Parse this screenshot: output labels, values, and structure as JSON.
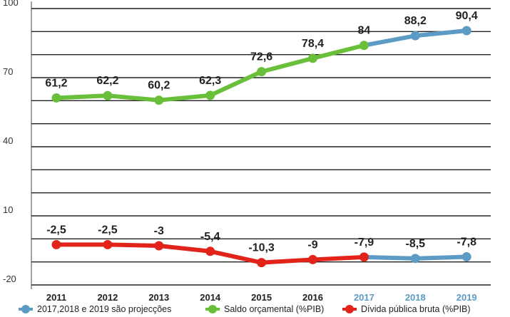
{
  "chart_data": {
    "type": "line",
    "categories": [
      "2011",
      "2012",
      "2013",
      "2014",
      "2015",
      "2016",
      "2017",
      "2018",
      "2019"
    ],
    "projected_categories": [
      "2017",
      "2018",
      "2019"
    ],
    "y_ticks": [
      "100",
      "70",
      "40",
      "10",
      "-20"
    ],
    "ylim": [
      -20,
      100
    ],
    "grid": true,
    "legend_position": "bottom",
    "series": [
      {
        "name": "Saldo orçamental (%PIB)",
        "color": "#6abf3a",
        "values": [
          61.2,
          62.2,
          60.2,
          62.3,
          72.6,
          78.4,
          84,
          88.2,
          90.4
        ],
        "labels": [
          "61,2",
          "62,2",
          "60,2",
          "62,3",
          "72,6",
          "78,4",
          "84",
          "88,2",
          "90,4"
        ]
      },
      {
        "name": "Dívida pública bruta (%PIB)",
        "color": "#e2231a",
        "values": [
          -2.5,
          -2.5,
          -3,
          -5.4,
          -10.3,
          -9,
          -7.9,
          -8.5,
          -7.8
        ],
        "labels": [
          "-2,5",
          "-2,5",
          "-3",
          "-5,4",
          "-10,3",
          "-9",
          "-7,9",
          "-8,5",
          "-7,8"
        ]
      }
    ],
    "legend": [
      {
        "label": "2017,2018 e 2019 são projecções",
        "color": "#5b9bc4"
      },
      {
        "label": "Saldo orçamental (%PIB)",
        "color": "#6abf3a"
      },
      {
        "label": "Dívida pública bruta (%PIB)",
        "color": "#e2231a"
      }
    ],
    "colors": {
      "projection": "#5b9bc4",
      "grid": "#222222",
      "axis": "#444444",
      "xtick_actual": "#222222",
      "xtick_projected": "#5b9bc4"
    }
  }
}
